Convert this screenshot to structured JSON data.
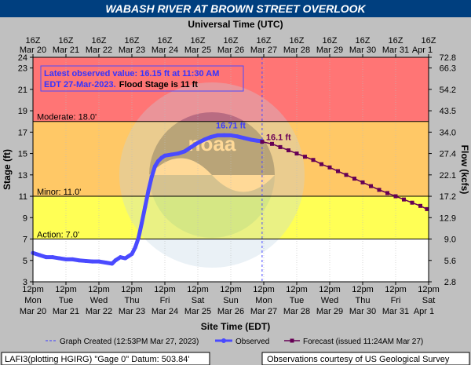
{
  "chart_data": {
    "type": "line",
    "title": "WABASH RIVER AT BROWN STREET OVERLOOK",
    "top_axis_title": "Universal Time (UTC)",
    "bottom_axis_title": "Site Time (EDT)",
    "ylabel_left": "Stage (ft)",
    "ylabel_right": "Flow (kcfs)",
    "ylim": [
      3,
      24
    ],
    "xlim_days": [
      0,
      12
    ],
    "x_unit": "days after 12pm EDT Mar 20, 2023",
    "left_ticks": [
      3,
      5,
      7,
      9,
      11,
      13,
      15,
      17,
      19,
      21,
      23,
      24
    ],
    "right_ticks": [
      {
        "stage": 3,
        "label": "2.8"
      },
      {
        "stage": 5,
        "label": "5.6"
      },
      {
        "stage": 7,
        "label": "9.0"
      },
      {
        "stage": 9,
        "label": "12.9"
      },
      {
        "stage": 11,
        "label": "17.2"
      },
      {
        "stage": 13,
        "label": "22.1"
      },
      {
        "stage": 15,
        "label": "27.4"
      },
      {
        "stage": 17,
        "label": "34.0"
      },
      {
        "stage": 19,
        "label": "43.5"
      },
      {
        "stage": 21,
        "label": "54.2"
      },
      {
        "stage": 23,
        "label": "66.3"
      },
      {
        "stage": 24,
        "label": "72.8"
      }
    ],
    "bottom_labels": [
      {
        "time": "12pm",
        "day": "Mon",
        "date": "Mar 20"
      },
      {
        "time": "12pm",
        "day": "Tue",
        "date": "Mar 21"
      },
      {
        "time": "12pm",
        "day": "Wed",
        "date": "Mar 22"
      },
      {
        "time": "12pm",
        "day": "Thu",
        "date": "Mar 23"
      },
      {
        "time": "12pm",
        "day": "Fri",
        "date": "Mar 24"
      },
      {
        "time": "12pm",
        "day": "Sat",
        "date": "Mar 25"
      },
      {
        "time": "12pm",
        "day": "Sun",
        "date": "Mar 26"
      },
      {
        "time": "12pm",
        "day": "Mon",
        "date": "Mar 27"
      },
      {
        "time": "12pm",
        "day": "Tue",
        "date": "Mar 28"
      },
      {
        "time": "12pm",
        "day": "Wed",
        "date": "Mar 29"
      },
      {
        "time": "12pm",
        "day": "Thu",
        "date": "Mar 30"
      },
      {
        "time": "12pm",
        "day": "Fri",
        "date": "Mar 31"
      },
      {
        "time": "12pm",
        "day": "Sat",
        "date": "Apr 1"
      }
    ],
    "top_labels": [
      {
        "time": "16Z",
        "date": "Mar 20"
      },
      {
        "time": "16Z",
        "date": "Mar 21"
      },
      {
        "time": "16Z",
        "date": "Mar 22"
      },
      {
        "time": "16Z",
        "date": "Mar 23"
      },
      {
        "time": "16Z",
        "date": "Mar 24"
      },
      {
        "time": "16Z",
        "date": "Mar 25"
      },
      {
        "time": "16Z",
        "date": "Mar 26"
      },
      {
        "time": "16Z",
        "date": "Mar 27"
      },
      {
        "time": "16Z",
        "date": "Mar 28"
      },
      {
        "time": "16Z",
        "date": "Mar 29"
      },
      {
        "time": "16Z",
        "date": "Mar 30"
      },
      {
        "time": "16Z",
        "date": "Mar 31"
      },
      {
        "time": "16Z",
        "date": "Apr 1"
      }
    ],
    "flood_categories": [
      {
        "name": "Moderate",
        "label": "Moderate: 18.0'",
        "stage": 18.0,
        "color": "#ff7575"
      },
      {
        "name": "Minor",
        "label": "Minor: 11.0'",
        "stage": 11.0,
        "color": "#ffc866"
      },
      {
        "name": "Action",
        "label": "Action: 7.0'",
        "stage": 7.0,
        "color": "#ffff55"
      },
      {
        "name": "Normal",
        "label": "",
        "stage": 3.0,
        "color": "#ffffff"
      }
    ],
    "series": [
      {
        "name": "Observed",
        "color": "#4a4aff",
        "x": [
          0,
          0.2,
          0.4,
          0.6,
          0.8,
          1.0,
          1.2,
          1.4,
          1.6,
          1.8,
          2.0,
          2.2,
          2.4,
          2.5,
          2.65,
          2.8,
          2.9,
          3.0,
          3.1,
          3.2,
          3.3,
          3.4,
          3.5,
          3.6,
          3.7,
          3.8,
          3.9,
          4.0,
          4.2,
          4.4,
          4.6,
          4.8,
          5.0,
          5.2,
          5.4,
          5.6,
          5.8,
          6.0,
          6.2,
          6.4,
          6.6,
          6.8,
          6.95
        ],
        "values": [
          5.7,
          5.5,
          5.3,
          5.3,
          5.2,
          5.1,
          5.1,
          5.0,
          4.95,
          4.9,
          4.9,
          4.8,
          4.7,
          5.0,
          5.3,
          5.2,
          5.4,
          5.6,
          6.2,
          7.1,
          8.5,
          10.0,
          11.5,
          12.8,
          13.8,
          14.3,
          14.6,
          14.8,
          14.9,
          15.0,
          15.2,
          15.6,
          16.0,
          16.3,
          16.55,
          16.7,
          16.71,
          16.7,
          16.6,
          16.45,
          16.3,
          16.2,
          16.15
        ]
      },
      {
        "name": "Forecast",
        "color": "#660055",
        "x": [
          6.95,
          7.25,
          7.5,
          7.75,
          8.0,
          8.25,
          8.5,
          8.75,
          9.0,
          9.25,
          9.5,
          9.75,
          10.0,
          10.25,
          10.5,
          10.75,
          11.0,
          11.25,
          11.5,
          11.75,
          11.95
        ],
        "values": [
          16.1,
          15.9,
          15.6,
          15.3,
          15.0,
          14.7,
          14.4,
          14.0,
          13.7,
          13.35,
          13.0,
          12.65,
          12.3,
          11.95,
          11.6,
          11.3,
          11.0,
          10.7,
          10.4,
          10.1,
          9.8
        ]
      }
    ],
    "annotations": {
      "peak_label": "16.71 ft",
      "peak_x": 6.0,
      "peak_stage": 16.71,
      "forecast_start_label": "16.1 ft",
      "forecast_start_x": 6.95,
      "forecast_start_stage": 16.1,
      "graph_created_x": 6.95
    },
    "info_box": {
      "line1": "Latest observed value: 16.15 ft at 11:30 AM",
      "line2_prefix": "EDT 27-Mar-2023.",
      "line2_suffix": "Flood Stage is 11 ft"
    },
    "legend": {
      "graph_created": "Graph Created (12:53PM Mar 27, 2023)",
      "observed": "Observed",
      "forecast": "Forecast (issued 11:24AM Mar 27)"
    },
    "footer": {
      "left": "LAFI3(plotting HGIRG) \"Gage 0\" Datum: 503.84'",
      "right": "Observations courtesy of US Geological Survey"
    },
    "watermark_text": "NATIONAL OCEANIC AND ATMOSPHERIC ADMINISTRATION · U.S. DEPARTMENT OF COMMERCE · NOAA"
  }
}
